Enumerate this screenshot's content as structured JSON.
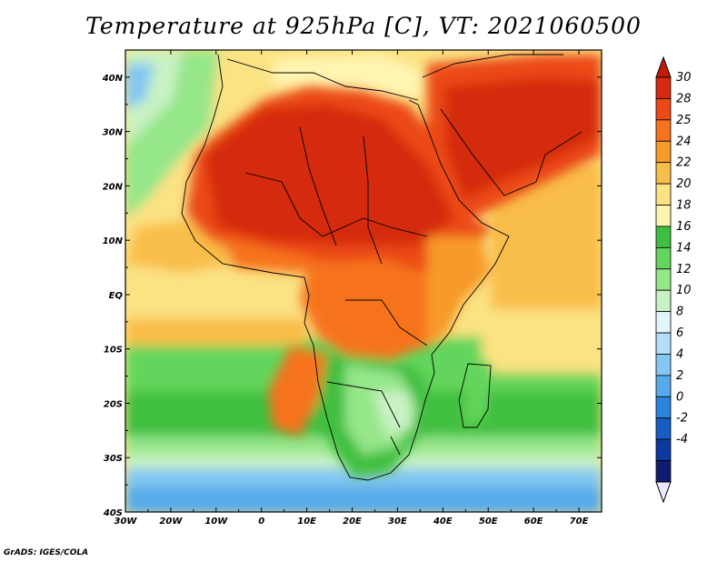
{
  "title": "Temperature at 925hPa [C], VT: 2021060500",
  "credit": "GrADS: IGES/COLA",
  "map": {
    "lon_ticks": [
      "30W",
      "20W",
      "10W",
      "0",
      "10E",
      "20E",
      "30E",
      "40E",
      "50E",
      "60E",
      "70E"
    ],
    "lat_ticks": [
      "40N",
      "30N",
      "20N",
      "10N",
      "EQ",
      "10S",
      "20S",
      "30S",
      "40S"
    ],
    "lon_range": [
      -30,
      75
    ],
    "lat_range": [
      -40,
      45
    ]
  },
  "colorbar": {
    "labels": [
      "30",
      "28",
      "25",
      "24",
      "22",
      "20",
      "18",
      "16",
      "14",
      "12",
      "10",
      "8",
      "6",
      "4",
      "2",
      "0",
      "-2",
      "-4"
    ],
    "colors": [
      "#d42a10",
      "#eb4a16",
      "#f6731d",
      "#f89a2a",
      "#f9bd4a",
      "#fbe283",
      "#fff4b0",
      "#3fbf3f",
      "#64d55c",
      "#96e68a",
      "#c8f2c3",
      "#e2f6f8",
      "#b3def8",
      "#83c7f2",
      "#56aaea",
      "#2d84dc",
      "#155dc2",
      "#0a3aa0",
      "#101a70"
    ],
    "top_arrow_color": "#c41a0c",
    "bottom_arrow_color": "#e8e8ff"
  }
}
